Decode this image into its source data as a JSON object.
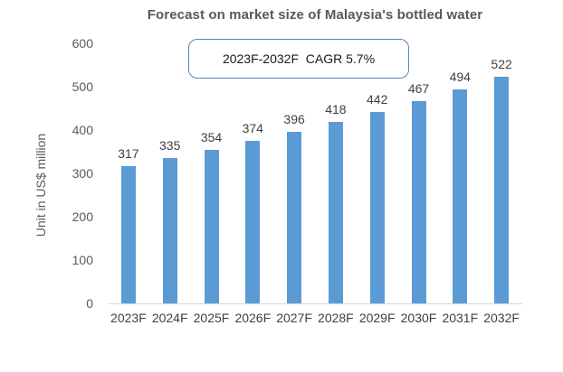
{
  "chart_data": {
    "type": "bar",
    "title": "Forecast on market size of Malaysia's bottled water",
    "ylabel": "Unit in US$ million",
    "xlabel": "",
    "categories": [
      "2023F",
      "2024F",
      "2025F",
      "2026F",
      "2027F",
      "2028F",
      "2029F",
      "2030F",
      "2031F",
      "2032F"
    ],
    "values": [
      317,
      335,
      354,
      374,
      396,
      418,
      442,
      467,
      494,
      522
    ],
    "ylim": [
      0,
      600
    ],
    "ytick_step": 100,
    "yticks": [
      0,
      100,
      200,
      300,
      400,
      500,
      600
    ],
    "grid": false,
    "legend_position": "none",
    "annotation": "2023F-2032F  CAGR 5.7%",
    "colors": {
      "bar": "#5b9bd5",
      "title": "#595959",
      "tick_label": "#595959",
      "data_label": "#404040",
      "axis_line": "#d9d9d9",
      "annotation_border": "#5b84b1",
      "annotation_text": "#1a1a1a"
    }
  }
}
